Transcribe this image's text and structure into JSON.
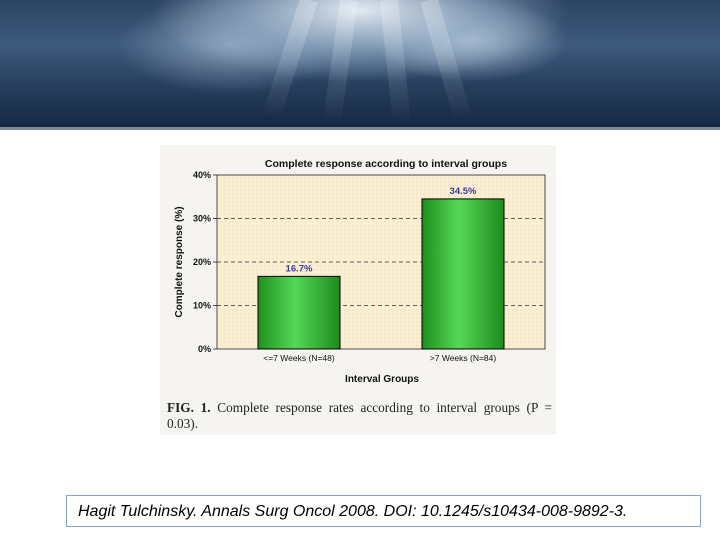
{
  "chart_data": {
    "type": "bar",
    "title": "Complete response according to interval groups",
    "xlabel": "Interval Groups",
    "ylabel": "Complete response (%)",
    "categories": [
      "<=7 Weeks (N=48)",
      ">7 Weeks (N=84)"
    ],
    "values": [
      16.7,
      34.5
    ],
    "data_labels": [
      "16.7%",
      "34.5%"
    ],
    "ylim": [
      0,
      40
    ],
    "yticks": [
      0,
      10,
      20,
      30,
      40
    ],
    "ytick_labels": [
      "0%",
      "10%",
      "20%",
      "30%",
      "40%"
    ],
    "grid": "dashed horizontal",
    "colors": {
      "bar": "#3ec23e",
      "bar_edge": "#000000",
      "plot_bg": "#fbf0d6",
      "data_label": "#3b3b9c"
    }
  },
  "caption": {
    "label": "FIG. 1.",
    "text": "Complete response rates according to interval groups (P = 0.03)."
  },
  "citation": "Hagit Tulchinsky. Annals Surg Oncol 2008. DOI: 10.1245/s10434-008-9892-3."
}
